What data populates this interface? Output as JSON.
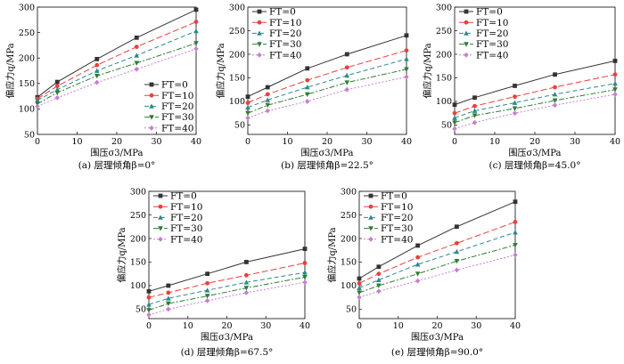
{
  "figure": {
    "series_names": [
      "FT=0",
      "FT=10",
      "FT=20",
      "FT=30",
      "FT=40"
    ],
    "series_colors": [
      "#333333",
      "#e8413d",
      "#2b8a8a",
      "#2e7d32",
      "#c77dd1"
    ],
    "xlabel": "围压σ3/MPa",
    "ylabel": "偏应力q/MPa"
  },
  "chart_data": [
    {
      "type": "line",
      "caption": "(a) 层理倾角β=0°",
      "xlabel": "围压σ3/MPa",
      "ylabel": "偏应力q/MPa",
      "xlim": [
        0,
        40
      ],
      "ylim": [
        50,
        300
      ],
      "xticks": [
        0,
        10,
        20,
        30,
        40
      ],
      "yticks": [
        50,
        100,
        150,
        200,
        250,
        300
      ],
      "legend": "bottom-right",
      "x": [
        0,
        5,
        15,
        25,
        40
      ],
      "series": [
        {
          "name": "FT=0",
          "values": [
            123,
            153,
            198,
            240,
            295
          ]
        },
        {
          "name": "FT=10",
          "values": [
            120,
            145,
            186,
            222,
            271
          ]
        },
        {
          "name": "FT=20",
          "values": [
            117,
            138,
            175,
            205,
            253
          ]
        },
        {
          "name": "FT=30",
          "values": [
            110,
            132,
            165,
            190,
            229
          ]
        },
        {
          "name": "FT=40",
          "values": [
            105,
            122,
            152,
            178,
            218
          ]
        }
      ]
    },
    {
      "type": "line",
      "caption": "(b) 层理倾角β=22.5°",
      "xlabel": "围压σ3/MPa",
      "ylabel": "偏应力q/MPa",
      "xlim": [
        0,
        40
      ],
      "ylim": [
        30,
        300
      ],
      "xticks": [
        0,
        10,
        20,
        30,
        40
      ],
      "yticks": [
        50,
        100,
        150,
        200,
        250,
        300
      ],
      "legend": "top-left",
      "x": [
        0,
        5,
        15,
        25,
        40
      ],
      "series": [
        {
          "name": "FT=0",
          "values": [
            110,
            130,
            170,
            200,
            240
          ]
        },
        {
          "name": "FT=10",
          "values": [
            97,
            115,
            145,
            172,
            208
          ]
        },
        {
          "name": "FT=20",
          "values": [
            87,
            103,
            130,
            155,
            190
          ]
        },
        {
          "name": "FT=30",
          "values": [
            75,
            92,
            115,
            140,
            168
          ]
        },
        {
          "name": "FT=40",
          "values": [
            65,
            80,
            100,
            125,
            152
          ]
        }
      ]
    },
    {
      "type": "line",
      "caption": "(c) 层理倾角β=45.0°",
      "xlabel": "围压σ3/MPa",
      "ylabel": "偏应力q/MPa",
      "xlim": [
        0,
        40
      ],
      "ylim": [
        30,
        300
      ],
      "xticks": [
        0,
        10,
        20,
        30,
        40
      ],
      "yticks": [
        50,
        100,
        150,
        200,
        250,
        300
      ],
      "legend": "top-left",
      "x": [
        0,
        5,
        15,
        25,
        40
      ],
      "series": [
        {
          "name": "FT=0",
          "values": [
            93,
            108,
            133,
            157,
            186
          ]
        },
        {
          "name": "FT=10",
          "values": [
            75,
            90,
            110,
            130,
            157
          ]
        },
        {
          "name": "FT=20",
          "values": [
            65,
            80,
            97,
            115,
            138
          ]
        },
        {
          "name": "FT=30",
          "values": [
            55,
            70,
            85,
            102,
            125
          ]
        },
        {
          "name": "FT=40",
          "values": [
            42,
            55,
            75,
            92,
            115
          ]
        }
      ]
    },
    {
      "type": "line",
      "caption": "(d) 层理倾角β=67.5°",
      "xlabel": "围压σ3/MPa",
      "ylabel": "偏应力q/MPa",
      "xlim": [
        0,
        40
      ],
      "ylim": [
        30,
        300
      ],
      "xticks": [
        0,
        10,
        20,
        30,
        40
      ],
      "yticks": [
        50,
        100,
        150,
        200,
        250,
        300
      ],
      "legend": "top-left",
      "x": [
        0,
        5,
        15,
        25,
        40
      ],
      "series": [
        {
          "name": "FT=0",
          "values": [
            88,
            100,
            125,
            150,
            178
          ]
        },
        {
          "name": "FT=10",
          "values": [
            75,
            85,
            105,
            122,
            148
          ]
        },
        {
          "name": "FT=20",
          "values": [
            60,
            73,
            90,
            107,
            128
          ]
        },
        {
          "name": "FT=30",
          "values": [
            48,
            62,
            78,
            95,
            118
          ]
        },
        {
          "name": "FT=40",
          "values": [
            38,
            50,
            68,
            85,
            107
          ]
        }
      ]
    },
    {
      "type": "line",
      "caption": "(e) 层理倾角β=90.0°",
      "xlabel": "围压σ3/MPa",
      "ylabel": "偏应力q/MPa",
      "xlim": [
        0,
        40
      ],
      "ylim": [
        30,
        300
      ],
      "xticks": [
        0,
        10,
        20,
        30,
        40
      ],
      "yticks": [
        50,
        100,
        150,
        200,
        250,
        300
      ],
      "legend": "top-left",
      "x": [
        0,
        5,
        15,
        25,
        40
      ],
      "series": [
        {
          "name": "FT=0",
          "values": [
            115,
            140,
            185,
            225,
            278
          ]
        },
        {
          "name": "FT=10",
          "values": [
            105,
            125,
            160,
            190,
            235
          ]
        },
        {
          "name": "FT=20",
          "values": [
            95,
            112,
            145,
            172,
            213
          ]
        },
        {
          "name": "FT=30",
          "values": [
            85,
            100,
            125,
            152,
            186
          ]
        },
        {
          "name": "FT=40",
          "values": [
            75,
            88,
            110,
            133,
            165
          ]
        }
      ]
    }
  ]
}
